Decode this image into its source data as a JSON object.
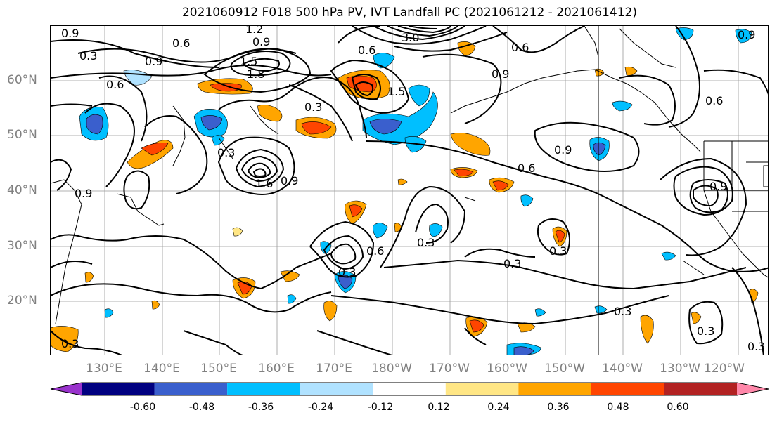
{
  "title": "2021060912 F018 500 hPa PV, IVT Landfall PC (2021061212 - 2021061412)",
  "lat_labels": [
    "60°N",
    "50°N",
    "40°N",
    "30°N",
    "20°N"
  ],
  "lon_labels": [
    "130°E",
    "140°E",
    "150°E",
    "160°E",
    "170°E",
    "180°W",
    "170°W",
    "160°W",
    "150°W",
    "140°W",
    "130°W",
    "120°W"
  ],
  "colorbar": {
    "colors": [
      "#9933cc",
      "#000080",
      "#3a5fcd",
      "#00bfff",
      "#b0e2ff",
      "#ffffff",
      "#ffe685",
      "#ffa500",
      "#ff4500",
      "#b22222",
      "#ff88aa"
    ],
    "tick_labels": [
      "-0.60",
      "-0.48",
      "-0.36",
      "-0.24",
      "-0.12",
      "0.12",
      "0.24",
      "0.36",
      "0.48",
      "0.60"
    ]
  },
  "contour_labels": {
    "c1": "0.9",
    "c2": "0.6",
    "c3": "1.2",
    "c4": "0.9",
    "c5": "3.0",
    "c6": "0.6",
    "c7": "0.3",
    "c8": "0.9",
    "c9": "1.5",
    "c10": "1.8",
    "c11": "0.6",
    "c12": "0.9",
    "c13": "0.6",
    "c14": "0.9",
    "c15": "0.3",
    "c16": "1.5",
    "c17": "0.3",
    "c18": "0.9",
    "c19": "1.6",
    "c20": "0.9",
    "c21": "0.6",
    "c22": "0.9",
    "c23": "0.9",
    "c24": "0.3",
    "c25": "0.3",
    "c26": "0.6",
    "c27": "0.3",
    "c28": "0.3",
    "c29": "0.3",
    "c30": "0.3",
    "c31": "0.3",
    "c32": "0.3",
    "c33": "0.6"
  }
}
